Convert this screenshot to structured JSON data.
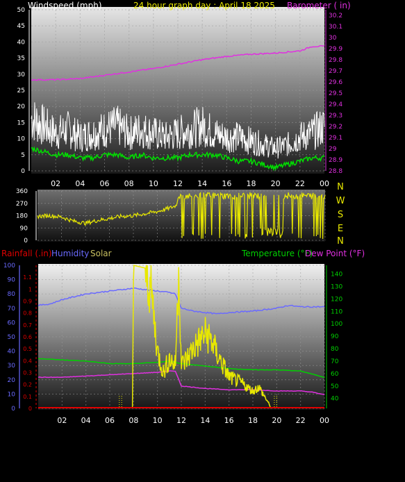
{
  "header": {
    "title": "24 hour graph day : April 18 2025",
    "left_label": "Windspeed (mph)",
    "right_label": "Barometer ( in)"
  },
  "colors": {
    "wind": "#ffffff",
    "wind_avg": "#00e000",
    "barometer": "#e030e0",
    "direction": "#e8e800",
    "rain": "#e00000",
    "humidity": "#6a6aff",
    "solar": "#e8e800",
    "temperature": "#00d000",
    "dewpoint": "#e030e0",
    "title": "#e8e800",
    "axis": "#ffffff"
  },
  "x_ticks": [
    "02",
    "04",
    "06",
    "08",
    "10",
    "12",
    "14",
    "16",
    "18",
    "20",
    "22",
    "00"
  ],
  "chart_data": [
    {
      "type": "line",
      "name": "wind-barometer",
      "x_hours": [
        0,
        2,
        4,
        6,
        8,
        10,
        12,
        14,
        16,
        18,
        20,
        22,
        24
      ],
      "y_left_ticks": [
        "0",
        "5",
        "10",
        "15",
        "20",
        "25",
        "30",
        "35",
        "40",
        "45",
        "50"
      ],
      "y_left_range": [
        0,
        50
      ],
      "y_right_ticks": [
        "28.8",
        "28.9",
        "29",
        "29.1",
        "29.2",
        "29.3",
        "29.4",
        "29.5",
        "29.6",
        "29.7",
        "29.8",
        "29.9",
        "30",
        "30.1",
        "30.2"
      ],
      "y_right_range": [
        28.8,
        30.25
      ],
      "series": [
        {
          "key": "wind_gust",
          "x": [
            0,
            1,
            2,
            3,
            4,
            5,
            6,
            7,
            8,
            9,
            10,
            11,
            12,
            13,
            14,
            15,
            16,
            17,
            18,
            19,
            20,
            21,
            22,
            23,
            24
          ],
          "values": [
            14,
            12,
            10,
            11,
            9,
            10,
            11,
            12,
            10,
            11,
            10,
            9,
            10,
            11,
            12,
            10,
            9,
            9,
            8,
            7,
            6,
            7,
            9,
            10,
            12
          ]
        },
        {
          "key": "wind_avg",
          "x": [
            0,
            1,
            2,
            3,
            4,
            5,
            6,
            7,
            8,
            9,
            10,
            11,
            12,
            13,
            14,
            15,
            16,
            17,
            18,
            19,
            20,
            21,
            22,
            23,
            24
          ],
          "values": [
            7,
            6,
            5,
            5,
            4,
            4,
            5,
            5,
            4,
            5,
            4,
            4,
            4,
            5,
            5,
            5,
            4,
            3,
            3,
            2,
            1,
            2,
            3,
            4,
            4
          ]
        },
        {
          "key": "barometer",
          "x": [
            0,
            2,
            4,
            6,
            8,
            10,
            12,
            14,
            16,
            18,
            20,
            22,
            23,
            24
          ],
          "values": [
            29.62,
            29.62,
            29.63,
            29.66,
            29.69,
            29.72,
            29.76,
            29.8,
            29.83,
            29.85,
            29.86,
            29.88,
            29.92,
            29.92
          ]
        }
      ]
    },
    {
      "type": "line",
      "name": "wind-direction",
      "y_left_ticks": [
        "360",
        "270",
        "180",
        "90",
        "0"
      ],
      "y_left_range": [
        0,
        360
      ],
      "y_right_ticks": [
        "N",
        "W",
        "S",
        "E",
        "N"
      ],
      "series": [
        {
          "key": "direction",
          "x": [
            0,
            1,
            2,
            3,
            4,
            5,
            6,
            7,
            8,
            9,
            10,
            11,
            11.5,
            12,
            13,
            14,
            15,
            16,
            17,
            18,
            19,
            20,
            21,
            22,
            23,
            24
          ],
          "values": [
            175,
            180,
            170,
            140,
            125,
            145,
            160,
            175,
            180,
            195,
            210,
            235,
            250,
            330,
            335,
            330,
            335,
            330,
            335,
            330,
            100,
            60,
            300,
            200,
            320,
            60
          ]
        }
      ]
    },
    {
      "type": "line",
      "name": "rain-humidity-solar-temp-dew",
      "legend": {
        "rainfall": "Rainfall (.in)",
        "humidity": "Humidity",
        "solar": "Solar",
        "temperature": "Temperature (°F)",
        "dewpoint": "Dew Point (°F)"
      },
      "y_left_ticks": [
        "0",
        "10",
        "20",
        "30",
        "40",
        "50",
        "60",
        "70",
        "80",
        "90",
        "100"
      ],
      "y_left_range": [
        0,
        100
      ],
      "y_rain_ticks": [
        "0",
        "0.1",
        "0.2",
        "0.3",
        "0.4",
        "0.5",
        "0.6",
        "0.7",
        "0.8",
        "0.9",
        "1",
        "1.1"
      ],
      "y_rain_range": [
        0,
        1.2
      ],
      "y_right_ticks": [
        "40",
        "50",
        "60",
        "70",
        "80",
        "90",
        "100",
        "110",
        "120",
        "130",
        "140"
      ],
      "y_right_range": [
        32,
        147
      ],
      "series": [
        {
          "key": "humidity",
          "x": [
            0,
            1,
            2,
            4,
            6,
            8,
            9,
            10,
            11,
            11.5,
            12,
            13,
            14,
            15,
            16,
            18,
            20,
            21,
            22,
            24
          ],
          "values": [
            72,
            73,
            76,
            80,
            82,
            84,
            83,
            82,
            81,
            80,
            70,
            68,
            67,
            66,
            67,
            68,
            70,
            72,
            71,
            71
          ]
        },
        {
          "key": "temperature",
          "x": [
            0,
            2,
            4,
            6,
            8,
            10,
            11,
            12,
            14,
            16,
            18,
            20,
            22,
            24
          ],
          "values": [
            72,
            71,
            70,
            68,
            68,
            69,
            70,
            68,
            66,
            64,
            63,
            63,
            62,
            57
          ]
        },
        {
          "key": "dewpoint",
          "x": [
            0,
            2,
            4,
            6,
            8,
            10,
            11,
            11.5,
            12,
            14,
            16,
            18,
            20,
            22,
            23,
            24
          ],
          "values": [
            57,
            57,
            58,
            59,
            60,
            61,
            62,
            62,
            50,
            48,
            47,
            47,
            46,
            46,
            45,
            43
          ]
        },
        {
          "key": "solar",
          "x": [
            7.9,
            8,
            9,
            9.5,
            10,
            10.5,
            11,
            11.5,
            11.8,
            12,
            12.5,
            13,
            14,
            14.5,
            15,
            16,
            17,
            18,
            18.5,
            19,
            19.3,
            19.5
          ],
          "values": [
            0,
            100,
            98,
            80,
            40,
            25,
            35,
            30,
            100,
            30,
            35,
            42,
            52,
            48,
            38,
            22,
            18,
            12,
            15,
            8,
            4,
            0
          ]
        },
        {
          "key": "rainfall",
          "x": [
            0,
            24
          ],
          "values": [
            0,
            0
          ]
        }
      ]
    }
  ]
}
